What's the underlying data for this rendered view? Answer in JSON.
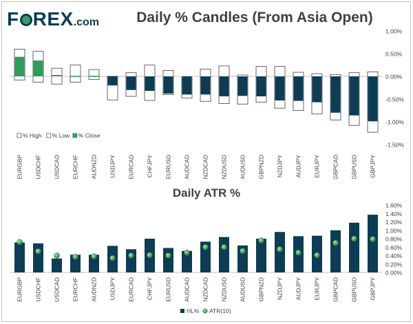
{
  "brand": {
    "name_pre": "F",
    "name_post": "REX",
    "tld": ".com"
  },
  "colors": {
    "navy": "#0d3c55",
    "green": "#2e9e5b",
    "white_box": "#ffffff",
    "box_border": "#404040",
    "axis_text": "#404040",
    "atr_marker": "#2a8a4a"
  },
  "chart_data": [
    {
      "type": "bar",
      "title": "Daily % Candles (From Asia Open)",
      "categories": [
        "EURGBP",
        "USDCHF",
        "USDCAD",
        "EURCHF",
        "AUDNZD",
        "USDJPY",
        "EURCAD",
        "CHFJPY",
        "EURUSD",
        "AUDCAD",
        "NZDCAD",
        "NZDUSD",
        "AUDUSD",
        "GBPNZD",
        "NZDJPY",
        "AUDJPY",
        "EURJPY",
        "GBPCAD",
        "GBPUSD",
        "GBPJPY"
      ],
      "series": [
        {
          "name": "% High",
          "values": [
            0.6,
            0.55,
            0.18,
            0.25,
            0.15,
            0.0,
            0.08,
            0.25,
            0.13,
            -0.02,
            0.16,
            0.23,
            0.03,
            0.22,
            0.22,
            0.09,
            0.06,
            0.04,
            0.08,
            0.1
          ]
        },
        {
          "name": "% Low",
          "values": [
            -0.08,
            -0.13,
            -0.17,
            -0.13,
            -0.07,
            -0.52,
            -0.44,
            -0.53,
            -0.4,
            -0.48,
            -0.55,
            -0.6,
            -0.61,
            -0.57,
            -0.7,
            -0.75,
            -0.83,
            -0.96,
            -1.08,
            -1.23
          ]
        },
        {
          "name": "% Close",
          "values": [
            0.43,
            0.35,
            0.03,
            0.0,
            0.0,
            -0.2,
            -0.3,
            -0.32,
            -0.38,
            -0.4,
            -0.4,
            -0.44,
            -0.43,
            -0.44,
            -0.53,
            -0.54,
            -0.57,
            -0.8,
            -0.86,
            -0.99
          ]
        }
      ],
      "ylim": [
        -1.5,
        1.0
      ],
      "yticks": [
        "1.00%",
        "0.50%",
        "0.00%",
        "-0.50%",
        "-1.00%",
        "-1.50%"
      ],
      "ytick_values": [
        1.0,
        0.5,
        0.0,
        -0.5,
        -1.0,
        -1.5
      ],
      "legend": [
        {
          "label": "% High",
          "swatch": "white"
        },
        {
          "label": "% Low",
          "swatch": "white"
        },
        {
          "label": "% Close",
          "swatch": "green"
        }
      ],
      "legend_position": "bottom-left"
    },
    {
      "type": "bar",
      "title": "Daily ATR %",
      "categories": [
        "EURGBP",
        "USDCHF",
        "USDCAD",
        "EURCHF",
        "AUDNZD",
        "USDJPY",
        "EURCAD",
        "CHFJPY",
        "EURUSD",
        "AUDCAD",
        "NZDCAD",
        "NZDUSD",
        "AUDUSD",
        "GBPNZD",
        "NZDJPY",
        "AUDJPY",
        "EURJPY",
        "GBPCAD",
        "GBPUSD",
        "GBPJPY"
      ],
      "series": [
        {
          "name": "HL%",
          "values": [
            0.71,
            0.69,
            0.33,
            0.42,
            0.42,
            0.63,
            0.55,
            0.8,
            0.58,
            0.51,
            0.73,
            0.84,
            0.64,
            0.8,
            0.96,
            0.86,
            0.87,
            1.0,
            1.18,
            1.37
          ]
        },
        {
          "name": "ATR(10)",
          "values": [
            0.72,
            0.5,
            0.4,
            0.37,
            0.38,
            0.34,
            0.4,
            0.41,
            0.4,
            0.47,
            0.6,
            0.6,
            0.51,
            0.76,
            0.55,
            0.47,
            0.41,
            0.7,
            0.8,
            0.79
          ]
        }
      ],
      "ylim": [
        0.0,
        1.6
      ],
      "yticks": [
        "1.60%",
        "1.40%",
        "1.20%",
        "1.00%",
        "0.80%",
        "0.60%",
        "0.40%",
        "0.20%",
        "0.00%"
      ],
      "ytick_values": [
        1.6,
        1.4,
        1.2,
        1.0,
        0.8,
        0.6,
        0.4,
        0.2,
        0.0
      ],
      "legend": [
        {
          "label": "HL%",
          "swatch": "bar"
        },
        {
          "label": "ATR(10)",
          "swatch": "marker"
        }
      ],
      "legend_position": "bottom-center"
    }
  ]
}
